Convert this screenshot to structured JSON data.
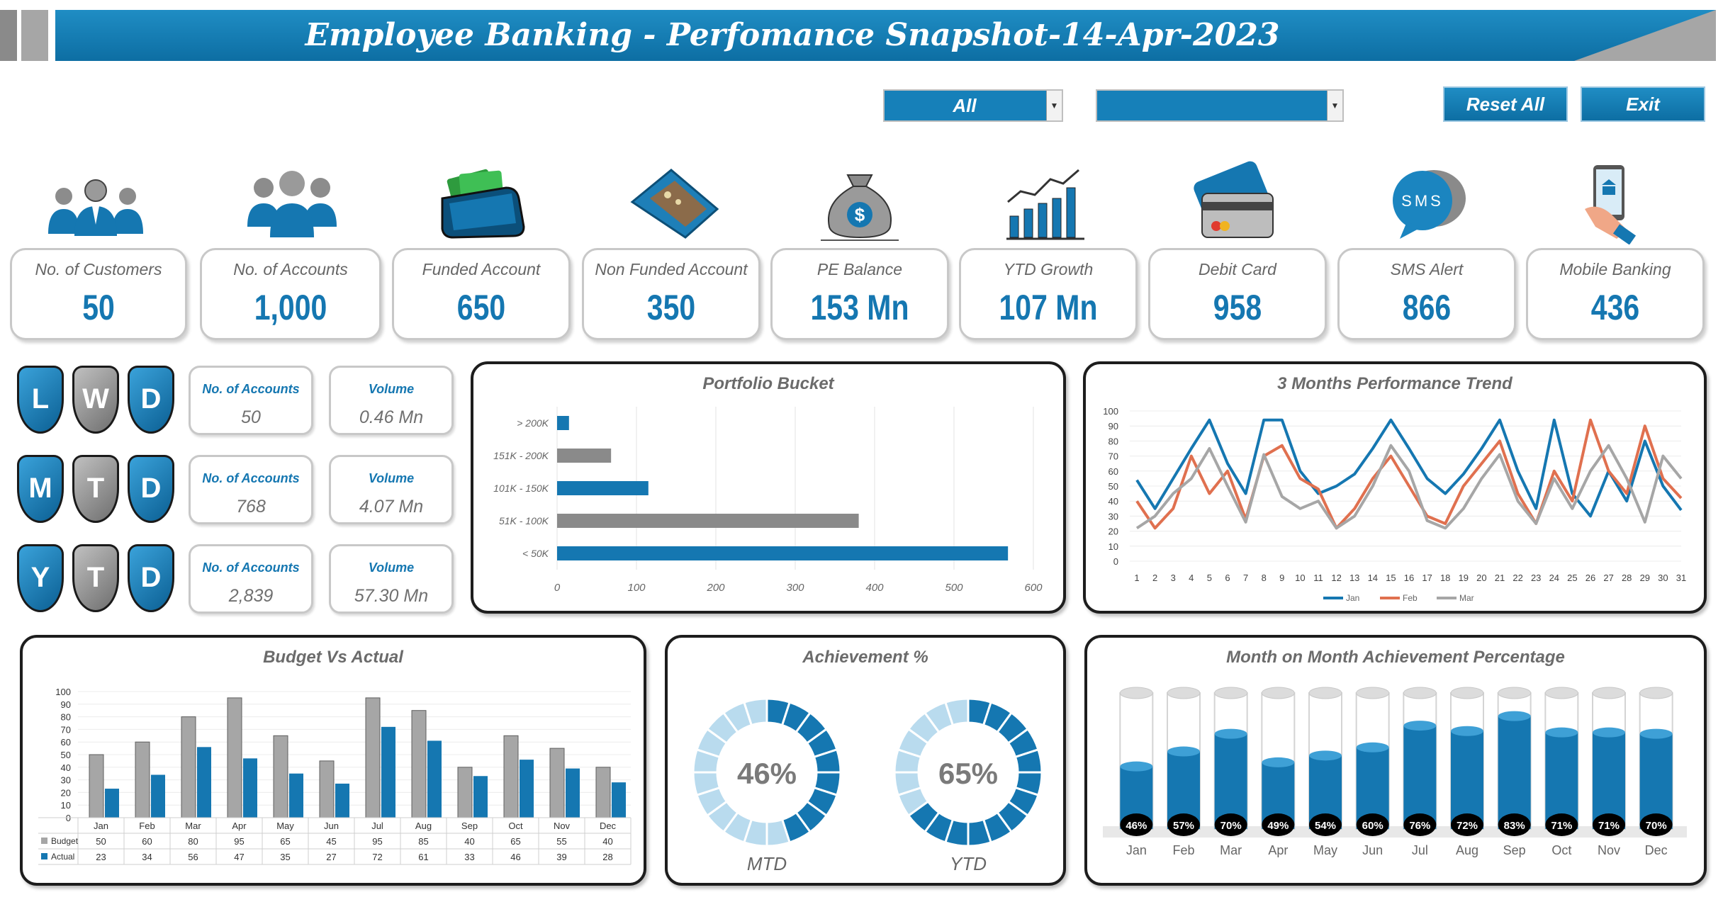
{
  "header": {
    "title": "Employee Banking - Perfomance Snapshot-14-Apr-2023"
  },
  "controls": {
    "filter1_value": "All",
    "filter2_value": "",
    "reset_label": "Reset All",
    "exit_label": "Exit"
  },
  "kpis": [
    {
      "label": "No. of Customers",
      "value": "50",
      "icon": "customers-icon"
    },
    {
      "label": "No. of Accounts",
      "value": "1,000",
      "icon": "accounts-icon"
    },
    {
      "label": "Funded Account",
      "value": "650",
      "icon": "wallet-cash-icon"
    },
    {
      "label": "Non Funded Account",
      "value": "350",
      "icon": "empty-wallet-icon"
    },
    {
      "label": "PE Balance",
      "value": "153 Mn",
      "icon": "money-bag-icon"
    },
    {
      "label": "YTD Growth",
      "value": "107 Mn",
      "icon": "growth-chart-icon"
    },
    {
      "label": "Debit Card",
      "value": "958",
      "icon": "debit-card-icon"
    },
    {
      "label": "SMS Alert",
      "value": "866",
      "icon": "sms-bubble-icon"
    },
    {
      "label": "Mobile Banking",
      "value": "436",
      "icon": "mobile-banking-icon"
    }
  ],
  "periods": [
    {
      "letters": [
        "L",
        "W",
        "D"
      ],
      "accounts_label": "No. of Accounts",
      "accounts": "50",
      "volume_label": "Volume",
      "volume": "0.46 Mn"
    },
    {
      "letters": [
        "M",
        "T",
        "D"
      ],
      "accounts_label": "No. of Accounts",
      "accounts": "768",
      "volume_label": "Volume",
      "volume": "4.07 Mn"
    },
    {
      "letters": [
        "Y",
        "T",
        "D"
      ],
      "accounts_label": "No. of Accounts",
      "accounts": "2,839",
      "volume_label": "Volume",
      "volume": "57.30 Mn"
    }
  ],
  "colors": {
    "blue": "#1577b1",
    "gray": "#8a8a8a",
    "orange": "#e0704f",
    "lightgray": "#a6a6a6",
    "lightblue": "#b9dbee"
  },
  "chart_data": [
    {
      "type": "bar",
      "title": "Portfolio Bucket",
      "orientation": "horizontal",
      "categories": [
        "> 200K",
        "151K - 200K",
        "101K - 150K",
        "51K - 100K",
        "< 50K"
      ],
      "values": [
        15,
        68,
        115,
        380,
        568
      ],
      "xlim": [
        0,
        600
      ],
      "xticks": [
        0,
        100,
        200,
        300,
        400,
        500,
        600
      ]
    },
    {
      "type": "line",
      "title": "3 Months Performance Trend",
      "x": [
        1,
        2,
        3,
        4,
        5,
        6,
        7,
        8,
        9,
        10,
        11,
        12,
        13,
        14,
        15,
        16,
        17,
        18,
        19,
        20,
        21,
        22,
        23,
        24,
        25,
        26,
        27,
        28,
        29,
        30,
        31
      ],
      "series": [
        {
          "name": "Jan",
          "values": [
            54,
            35,
            55,
            75,
            94,
            65,
            45,
            94,
            94,
            60,
            45,
            50,
            58,
            75,
            94,
            75,
            55,
            45,
            58,
            75,
            94,
            60,
            35,
            94,
            45,
            30,
            60,
            40,
            80,
            50,
            34
          ]
        },
        {
          "name": "Feb",
          "values": [
            40,
            22,
            35,
            70,
            45,
            60,
            28,
            70,
            77,
            55,
            48,
            22,
            35,
            55,
            70,
            50,
            30,
            25,
            50,
            65,
            80,
            45,
            25,
            60,
            40,
            94,
            60,
            45,
            90,
            55,
            42
          ]
        },
        {
          "name": "Mar",
          "values": [
            22,
            30,
            45,
            55,
            75,
            50,
            26,
            71,
            43,
            35,
            40,
            22,
            30,
            50,
            77,
            60,
            27,
            22,
            35,
            55,
            71,
            40,
            25,
            55,
            35,
            60,
            77,
            55,
            26,
            70,
            55
          ]
        }
      ],
      "ylim": [
        0,
        100
      ],
      "yticks": [
        0,
        10,
        20,
        30,
        40,
        50,
        60,
        70,
        80,
        90,
        100
      ],
      "legend": "bottom"
    },
    {
      "type": "bar",
      "title": "Budget Vs Actual",
      "categories": [
        "Jan",
        "Feb",
        "Mar",
        "Apr",
        "May",
        "Jun",
        "Jul",
        "Aug",
        "Sep",
        "Oct",
        "Nov",
        "Dec"
      ],
      "series": [
        {
          "name": "Budget",
          "values": [
            50,
            60,
            80,
            95,
            65,
            45,
            95,
            85,
            40,
            65,
            55,
            40
          ]
        },
        {
          "name": "Actual",
          "values": [
            23,
            34,
            56,
            47,
            35,
            27,
            72,
            61,
            33,
            46,
            39,
            28
          ]
        }
      ],
      "ylim": [
        0,
        100
      ],
      "yticks": [
        0,
        10,
        20,
        30,
        40,
        50,
        60,
        70,
        80,
        90,
        100
      ],
      "data_table": true
    },
    {
      "type": "pie",
      "title": "Achievement %",
      "donuts": [
        {
          "label": "MTD",
          "value": 46,
          "text": "46%"
        },
        {
          "label": "YTD",
          "value": 65,
          "text": "65%"
        }
      ]
    },
    {
      "type": "bar",
      "title": "Month on Month Achievement Percentage",
      "categories": [
        "Jan",
        "Feb",
        "Mar",
        "Apr",
        "May",
        "Jun",
        "Jul",
        "Aug",
        "Sep",
        "Oct",
        "Nov",
        "Dec"
      ],
      "values": [
        46,
        57,
        70,
        49,
        54,
        60,
        76,
        72,
        83,
        71,
        71,
        70
      ],
      "labels": [
        "46%",
        "57%",
        "70%",
        "49%",
        "54%",
        "60%",
        "76%",
        "72%",
        "83%",
        "71%",
        "71%",
        "70%"
      ],
      "ylim": [
        0,
        100
      ]
    }
  ]
}
